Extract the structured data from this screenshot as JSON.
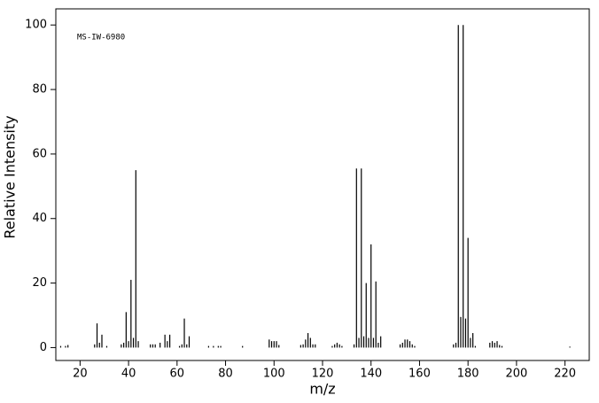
{
  "chart_data": {
    "type": "stick",
    "annotation": "MS-IW-6980",
    "x_label": "m/z",
    "y_label": "Relative Intensity",
    "x": [
      12,
      14,
      15,
      26,
      27,
      28,
      29,
      31,
      37,
      38,
      39,
      40,
      41,
      42,
      43,
      44,
      49,
      50,
      51,
      53,
      55,
      56,
      57,
      61,
      62,
      63,
      64,
      65,
      73,
      75,
      77,
      78,
      87,
      98,
      99,
      100,
      101,
      102,
      111,
      112,
      113,
      114,
      115,
      116,
      117,
      124,
      125,
      126,
      127,
      128,
      133,
      134,
      135,
      136,
      137,
      138,
      139,
      140,
      141,
      142,
      143,
      144,
      152,
      153,
      154,
      155,
      156,
      157,
      158,
      174,
      175,
      176,
      177,
      178,
      179,
      180,
      181,
      182,
      183,
      189,
      190,
      191,
      192,
      193,
      194,
      222
    ],
    "values": [
      0.5,
      0.5,
      0.8,
      1,
      7.5,
      1.5,
      4,
      0.5,
      1,
      1.5,
      11,
      2,
      21,
      3,
      55,
      2,
      1,
      1,
      1,
      1.5,
      4,
      2,
      4,
      0.5,
      1,
      9,
      1,
      3.5,
      0.5,
      0.5,
      0.5,
      0.5,
      0.5,
      2.5,
      2,
      2,
      2,
      0.8,
      0.8,
      1,
      2.5,
      4.5,
      3,
      1,
      1,
      0.5,
      1,
      1.5,
      1,
      0.5,
      1,
      55.5,
      3,
      55.5,
      3.5,
      20,
      3,
      32,
      3,
      20.5,
      1.5,
      3.5,
      1,
      1.5,
      2.5,
      2.5,
      2,
      1,
      0.5,
      1,
      1.5,
      100,
      9.5,
      100,
      9,
      34,
      3,
      4.5,
      0.5,
      1.5,
      2,
      1.5,
      2,
      0.8,
      0.5,
      0.3
    ],
    "color": "#000000",
    "xlim": [
      10,
      230
    ],
    "xticks": [
      20,
      40,
      60,
      80,
      100,
      120,
      140,
      160,
      180,
      200,
      220
    ],
    "ylim": [
      -4,
      105
    ],
    "yticks": [
      0,
      20,
      40,
      60,
      80,
      100
    ]
  }
}
